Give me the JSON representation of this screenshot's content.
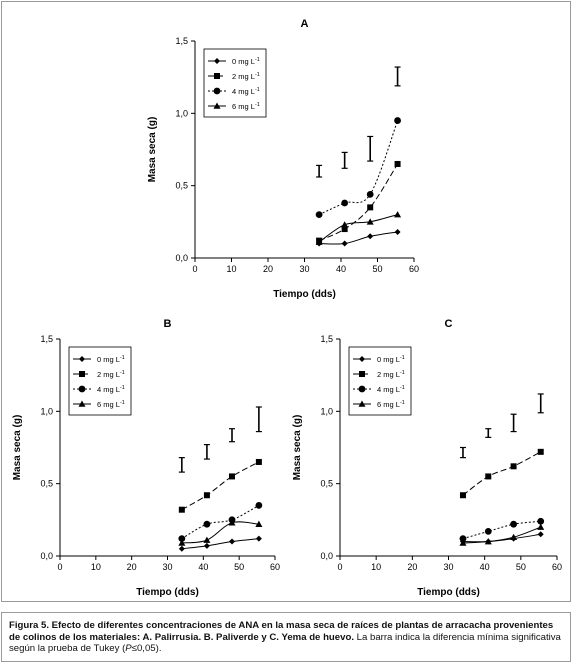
{
  "chart_data": [
    {
      "panel": "A",
      "type": "line",
      "ylabel": "Masa seca (g)",
      "xlabel": "Tiempo (dds)",
      "xticks": [
        "0",
        "10",
        "20",
        "30",
        "40",
        "50",
        "60"
      ],
      "yticks": [
        "0,0",
        "0,5",
        "1,0",
        "1,5"
      ],
      "xlim": [
        0,
        60
      ],
      "ylim": [
        0,
        1.5
      ],
      "legend_position": "top-left",
      "series": [
        {
          "name": "0 mg L",
          "sup": "-1",
          "marker": "diamond",
          "dash": "",
          "x": [
            34,
            41,
            48,
            55.5
          ],
          "y": [
            0.1,
            0.1,
            0.15,
            0.18
          ]
        },
        {
          "name": "2 mg L",
          "sup": "-1",
          "marker": "square",
          "dash": "6 3",
          "x": [
            34,
            41,
            48,
            55.5
          ],
          "y": [
            0.12,
            0.2,
            0.35,
            0.65
          ]
        },
        {
          "name": "4 mg L",
          "sup": "-1",
          "marker": "circle",
          "dash": "2 2",
          "x": [
            34,
            41,
            48,
            55.5
          ],
          "y": [
            0.3,
            0.38,
            0.44,
            0.95
          ]
        },
        {
          "name": "6 mg L",
          "sup": "-1",
          "marker": "triangle",
          "dash": "",
          "x": [
            34,
            41,
            48,
            55.5
          ],
          "y": [
            0.11,
            0.23,
            0.25,
            0.3
          ]
        }
      ],
      "lsd_bars": [
        {
          "x": 34,
          "low": 0.56,
          "high": 0.64
        },
        {
          "x": 41,
          "low": 0.62,
          "high": 0.73
        },
        {
          "x": 48,
          "low": 0.67,
          "high": 0.84
        },
        {
          "x": 55.5,
          "low": 1.19,
          "high": 1.32
        }
      ]
    },
    {
      "panel": "B",
      "type": "line",
      "ylabel": "Masa seca (g)",
      "xlabel": "Tiempo (dds)",
      "xticks": [
        "0",
        "10",
        "20",
        "30",
        "40",
        "50",
        "60"
      ],
      "yticks": [
        "0,0",
        "0,5",
        "1,0",
        "1,5"
      ],
      "xlim": [
        0,
        60
      ],
      "ylim": [
        0,
        1.5
      ],
      "legend_position": "top-left",
      "series": [
        {
          "name": "0 mg L",
          "sup": "-1",
          "marker": "diamond",
          "dash": "",
          "x": [
            34,
            41,
            48,
            55.5
          ],
          "y": [
            0.05,
            0.07,
            0.1,
            0.12
          ]
        },
        {
          "name": "2 mg L",
          "sup": "-1",
          "marker": "square",
          "dash": "6 3",
          "x": [
            34,
            41,
            48,
            55.5
          ],
          "y": [
            0.32,
            0.42,
            0.55,
            0.65
          ]
        },
        {
          "name": "4 mg L",
          "sup": "-1",
          "marker": "circle",
          "dash": "2 2",
          "x": [
            34,
            41,
            48,
            55.5
          ],
          "y": [
            0.12,
            0.22,
            0.25,
            0.35
          ]
        },
        {
          "name": "6 mg L",
          "sup": "-1",
          "marker": "triangle",
          "dash": "",
          "x": [
            34,
            41,
            48,
            55.5
          ],
          "y": [
            0.09,
            0.11,
            0.23,
            0.22
          ]
        }
      ],
      "lsd_bars": [
        {
          "x": 34,
          "low": 0.58,
          "high": 0.68
        },
        {
          "x": 41,
          "low": 0.67,
          "high": 0.77
        },
        {
          "x": 48,
          "low": 0.79,
          "high": 0.88
        },
        {
          "x": 55.5,
          "low": 0.86,
          "high": 1.03
        }
      ]
    },
    {
      "panel": "C",
      "type": "line",
      "ylabel": "Masa seca (g)",
      "xlabel": "Tiempo (dds)",
      "xticks": [
        "0",
        "10",
        "20",
        "30",
        "40",
        "50",
        "60"
      ],
      "yticks": [
        "0,0",
        "0,5",
        "1,0",
        "1,5"
      ],
      "xlim": [
        0,
        60
      ],
      "ylim": [
        0,
        1.5
      ],
      "legend_position": "top-left",
      "series": [
        {
          "name": "0 mg L",
          "sup": "-1",
          "marker": "diamond",
          "dash": "",
          "x": [
            34,
            41,
            48,
            55.5
          ],
          "y": [
            0.1,
            0.1,
            0.12,
            0.15
          ]
        },
        {
          "name": "2 mg L",
          "sup": "-1",
          "marker": "square",
          "dash": "6 3",
          "x": [
            34,
            41,
            48,
            55.5
          ],
          "y": [
            0.42,
            0.55,
            0.62,
            0.72
          ]
        },
        {
          "name": "4 mg L",
          "sup": "-1",
          "marker": "circle",
          "dash": "2 2",
          "x": [
            34,
            41,
            48,
            55.5
          ],
          "y": [
            0.12,
            0.17,
            0.22,
            0.24
          ]
        },
        {
          "name": "6 mg L",
          "sup": "-1",
          "marker": "triangle",
          "dash": "",
          "x": [
            34,
            41,
            48,
            55.5
          ],
          "y": [
            0.09,
            0.1,
            0.13,
            0.2
          ]
        }
      ],
      "lsd_bars": [
        {
          "x": 34,
          "low": 0.68,
          "high": 0.75
        },
        {
          "x": 41,
          "low": 0.82,
          "high": 0.88
        },
        {
          "x": 48,
          "low": 0.86,
          "high": 0.98
        },
        {
          "x": 55.5,
          "low": 0.99,
          "high": 1.12
        }
      ]
    }
  ],
  "caption": {
    "label": "Figura 5.",
    "bold_text": "Efecto de diferentes concentraciones de ANA en la masa seca de raíces de plantas de arracacha provenientes de colinos de los materiales: A. Palirrusia. B. Paliverde y C. Yema de huevo.",
    "normal_text": "La barra indica la diferencia mínima significativa según la prueba de Tukey (",
    "italic_symbol": "P",
    "tail_text": "≤0,05)."
  }
}
